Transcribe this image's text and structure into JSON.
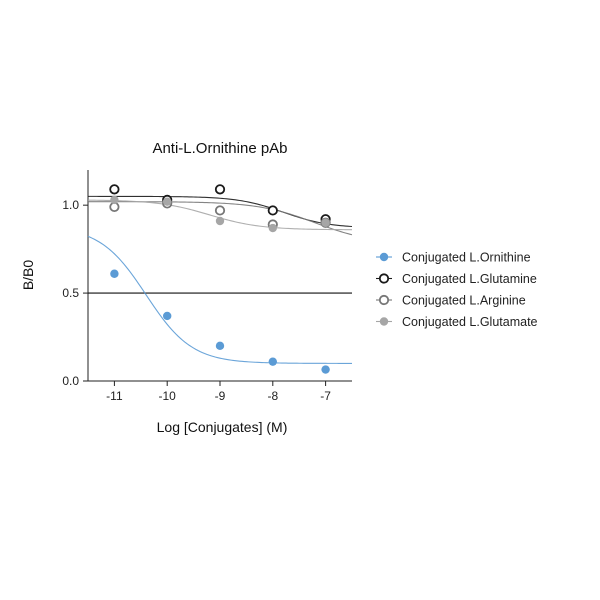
{
  "chart_data": {
    "type": "scatter",
    "title": "Anti-L.Ornithine pAb",
    "xlabel": "Log [Conjugates] (M)",
    "ylabel": "B/B0",
    "xlim": [
      -11.5,
      -6.5
    ],
    "ylim": [
      0,
      1.2
    ],
    "x_ticks": [
      -11,
      -10,
      -9,
      -8,
      -7
    ],
    "x_tick_labels": [
      "-11",
      "-10",
      "-9",
      "-8",
      "-7"
    ],
    "y_ticks": [
      0,
      0.5,
      1.0
    ],
    "y_tick_labels": [
      "0.0",
      "0.5",
      "1.0"
    ],
    "reference_line_y": 0.5,
    "grid": false,
    "legend_position": "right",
    "series": [
      {
        "name": "Conjugated L.Ornithine",
        "marker": "filled",
        "color": "#5b9bd5",
        "x": [
          -11,
          -10,
          -9,
          -8,
          -7
        ],
        "y": [
          0.61,
          0.37,
          0.2,
          0.11,
          0.065
        ],
        "fit": {
          "top": 0.88,
          "bottom": 0.1,
          "log_ic50": -10.4,
          "hill": 1.0
        }
      },
      {
        "name": "Conjugated L.Glutamine",
        "marker": "open",
        "color": "#1a1a1a",
        "x": [
          -11,
          -10,
          -9,
          -8,
          -7
        ],
        "y": [
          1.09,
          1.03,
          1.09,
          0.97,
          0.92
        ],
        "fit": {
          "top": 1.05,
          "bottom": 0.87,
          "log_ic50": -7.8,
          "hill": 1.0
        }
      },
      {
        "name": "Conjugated L.Arginine",
        "marker": "open",
        "color": "#777777",
        "x": [
          -11,
          -10,
          -9,
          -8,
          -7
        ],
        "y": [
          0.99,
          1.01,
          0.97,
          0.89,
          0.9
        ],
        "fit": {
          "top": 1.02,
          "bottom": 0.78,
          "log_ic50": -7.2,
          "hill": 0.8
        }
      },
      {
        "name": "Conjugated L.Glutamate",
        "marker": "filled",
        "color": "#a6a6a6",
        "x": [
          -11,
          -10,
          -9,
          -8,
          -7
        ],
        "y": [
          1.03,
          1.02,
          0.91,
          0.87,
          0.9
        ],
        "fit": {
          "top": 1.03,
          "bottom": 0.86,
          "log_ic50": -9.2,
          "hill": 0.9
        }
      }
    ]
  }
}
